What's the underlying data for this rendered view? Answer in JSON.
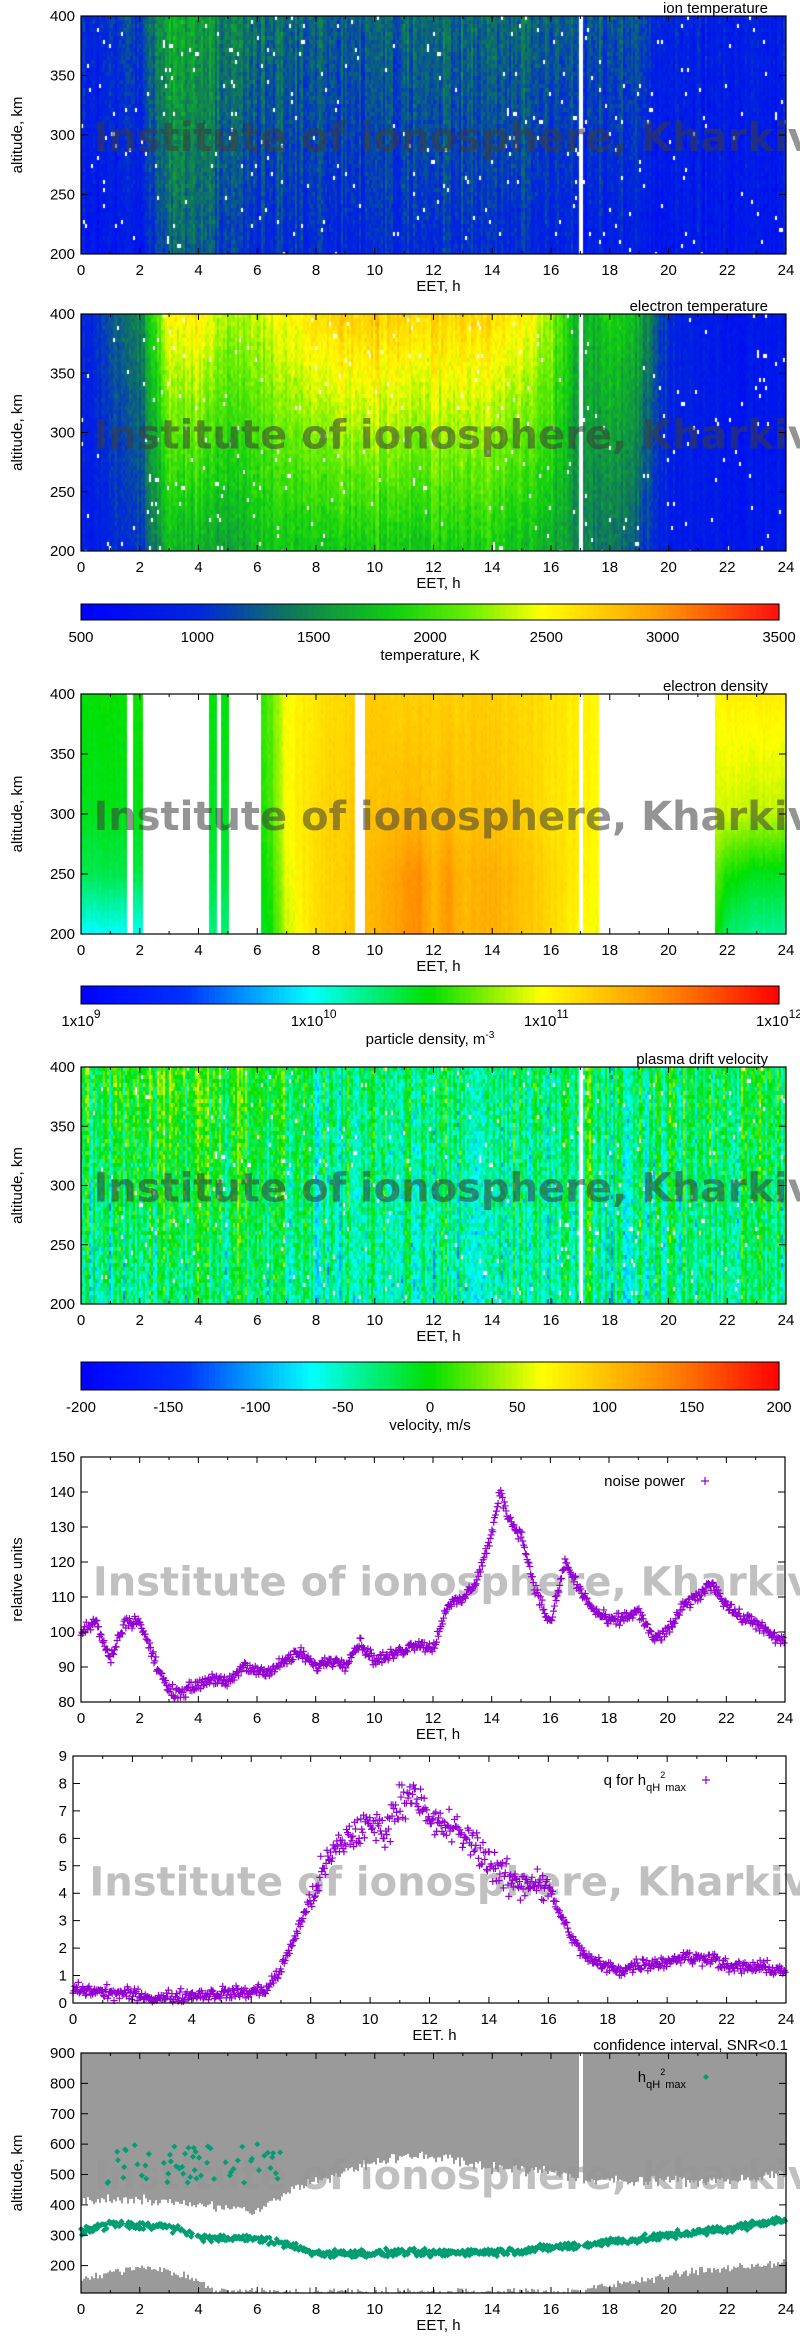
{
  "watermark": "Institute of ionosphere, Kharkiv",
  "colors": {
    "noise_marker": "#9400d3",
    "q_marker": "#9400d3",
    "h_marker": "#009e73",
    "confidence_gray": "#9a9a9a",
    "gap": "#ffffff"
  },
  "chart_data": [
    {
      "id": "ion-temperature",
      "type": "heatmap",
      "title": "ion temperature",
      "xlabel": "EET, h",
      "ylabel": "altitude, km",
      "xlim": [
        0,
        24
      ],
      "ylim": [
        200,
        400
      ],
      "xticks": [
        "0",
        "2",
        "4",
        "6",
        "8",
        "10",
        "12",
        "14",
        "16",
        "18",
        "20",
        "22",
        "24"
      ],
      "yticks": [
        "200",
        "250",
        "300",
        "350",
        "400"
      ],
      "colormap": "temperature",
      "crange": [
        500,
        3500
      ],
      "gaps": [
        [
          16.95,
          17.1
        ]
      ],
      "altitudes": [
        200,
        400
      ],
      "hours": [
        0,
        1,
        2,
        3,
        4,
        5,
        6,
        7,
        8,
        9,
        10,
        11,
        12,
        13,
        14,
        15,
        16,
        17,
        18,
        19,
        20,
        21,
        22,
        23,
        24
      ],
      "values": [
        [
          800,
          1000
        ],
        [
          800,
          1050
        ],
        [
          850,
          1200
        ],
        [
          1300,
          1700
        ],
        [
          1300,
          1650
        ],
        [
          1100,
          1450
        ],
        [
          1000,
          1400
        ],
        [
          1000,
          1300
        ],
        [
          1000,
          1300
        ],
        [
          1000,
          1300
        ],
        [
          1000,
          1300
        ],
        [
          1000,
          1300
        ],
        [
          1000,
          1350
        ],
        [
          1050,
          1350
        ],
        [
          1000,
          1350
        ],
        [
          1000,
          1350
        ],
        [
          950,
          1300
        ],
        [
          900,
          1250
        ],
        [
          900,
          1250
        ],
        [
          850,
          1200
        ],
        [
          800,
          950
        ],
        [
          800,
          900
        ],
        [
          800,
          900
        ],
        [
          800,
          900
        ],
        [
          800,
          900
        ]
      ],
      "colorbar": null
    },
    {
      "id": "electron-temperature",
      "type": "heatmap",
      "title": "electron temperature",
      "xlabel": "EET, h",
      "ylabel": "altitude, km",
      "xlim": [
        0,
        24
      ],
      "ylim": [
        200,
        400
      ],
      "xticks": [
        "0",
        "2",
        "4",
        "6",
        "8",
        "10",
        "12",
        "14",
        "16",
        "18",
        "20",
        "22",
        "24"
      ],
      "yticks": [
        "200",
        "250",
        "300",
        "350",
        "400"
      ],
      "colormap": "temperature",
      "crange": [
        500,
        3500
      ],
      "gaps": [
        [
          16.95,
          17.1
        ]
      ],
      "altitudes": [
        200,
        400
      ],
      "hours": [
        0,
        1,
        2,
        3,
        4,
        5,
        6,
        7,
        8,
        9,
        10,
        11,
        12,
        13,
        14,
        15,
        16,
        17,
        18,
        19,
        20,
        21,
        22,
        23,
        24
      ],
      "values": [
        [
          800,
          900
        ],
        [
          950,
          1200
        ],
        [
          1100,
          1500
        ],
        [
          1700,
          2500
        ],
        [
          1700,
          2600
        ],
        [
          1600,
          2300
        ],
        [
          1700,
          2300
        ],
        [
          1800,
          2500
        ],
        [
          1800,
          2650
        ],
        [
          1800,
          2700
        ],
        [
          1850,
          2750
        ],
        [
          1850,
          2750
        ],
        [
          1850,
          2700
        ],
        [
          1850,
          2700
        ],
        [
          1850,
          2650
        ],
        [
          1800,
          2600
        ],
        [
          1700,
          2300
        ],
        [
          1400,
          1600
        ],
        [
          1400,
          1900
        ],
        [
          1200,
          1700
        ],
        [
          850,
          1000
        ],
        [
          800,
          850
        ],
        [
          800,
          800
        ],
        [
          800,
          800
        ],
        [
          800,
          800
        ]
      ],
      "colorbar": {
        "label": "temperature, K",
        "ticks": [
          "500",
          "1000",
          "1500",
          "2000",
          "2500",
          "3000",
          "3500"
        ]
      }
    },
    {
      "id": "electron-density",
      "type": "heatmap",
      "title": "electron density",
      "xlabel": "EET, h",
      "ylabel": "altitude, km",
      "xlim": [
        0,
        24
      ],
      "ylim": [
        200,
        400
      ],
      "xticks": [
        "0",
        "2",
        "4",
        "6",
        "8",
        "10",
        "12",
        "14",
        "16",
        "18",
        "20",
        "22",
        "24"
      ],
      "yticks": [
        "200",
        "250",
        "300",
        "350",
        "400"
      ],
      "colormap": "rainbow",
      "crange": [
        9,
        12
      ],
      "log_scale": true,
      "gaps": [
        [
          1.6,
          1.8
        ],
        [
          2.1,
          4.35
        ],
        [
          4.6,
          4.8
        ],
        [
          5.05,
          6.1
        ],
        [
          9.35,
          9.65
        ],
        [
          16.95,
          17.1
        ],
        [
          17.6,
          21.6
        ]
      ],
      "altitudes": [
        200,
        250,
        300,
        400
      ],
      "hours": [
        0,
        2,
        4,
        6,
        6.5,
        7,
        8,
        9,
        10,
        11,
        11.5,
        12,
        12.5,
        13,
        14,
        15,
        16,
        17,
        17.5,
        21.6,
        22,
        23,
        24
      ],
      "values": [
        [
          10.0,
          10.35,
          10.45,
          10.5
        ],
        [
          10.0,
          10.35,
          10.45,
          10.5
        ],
        [
          10.2,
          10.35,
          10.4,
          10.45
        ],
        [
          10.35,
          10.45,
          10.5,
          10.55
        ],
        [
          10.55,
          10.6,
          10.65,
          10.7
        ],
        [
          10.9,
          10.95,
          11.0,
          11.0
        ],
        [
          11.15,
          11.15,
          11.15,
          11.1
        ],
        [
          11.2,
          11.2,
          11.2,
          11.15
        ],
        [
          11.3,
          11.3,
          11.25,
          11.2
        ],
        [
          11.45,
          11.45,
          11.3,
          11.2
        ],
        [
          11.5,
          11.5,
          11.3,
          11.2
        ],
        [
          11.3,
          11.3,
          11.25,
          11.2
        ],
        [
          11.45,
          11.45,
          11.3,
          11.2
        ],
        [
          11.3,
          11.3,
          11.25,
          11.2
        ],
        [
          11.35,
          11.35,
          11.25,
          11.2
        ],
        [
          11.25,
          11.25,
          11.2,
          11.15
        ],
        [
          11.15,
          11.15,
          11.1,
          11.1
        ],
        [
          11.0,
          11.05,
          11.05,
          11.05
        ],
        [
          10.95,
          11.0,
          11.0,
          11.0
        ],
        [
          10.55,
          10.7,
          10.9,
          11.0
        ],
        [
          10.3,
          10.55,
          10.9,
          11.05
        ],
        [
          10.2,
          10.45,
          10.85,
          11.05
        ],
        [
          10.2,
          10.45,
          10.85,
          11.05
        ]
      ],
      "colorbar": {
        "label": "particle density, m",
        "label_sup": "-3",
        "ticks": [
          {
            "base": "1x10",
            "exp": "9"
          },
          {
            "base": "1x10",
            "exp": "10"
          },
          {
            "base": "1x10",
            "exp": "11"
          },
          {
            "base": "1x10",
            "exp": "12"
          }
        ]
      }
    },
    {
      "id": "plasma-drift-velocity",
      "type": "heatmap",
      "title": "plasma drift velocity",
      "xlabel": "EET, h",
      "ylabel": "altitude, km",
      "xlim": [
        0,
        24
      ],
      "ylim": [
        200,
        400
      ],
      "xticks": [
        "0",
        "2",
        "4",
        "6",
        "8",
        "10",
        "12",
        "14",
        "16",
        "18",
        "20",
        "22",
        "24"
      ],
      "yticks": [
        "200",
        "250",
        "300",
        "350",
        "400"
      ],
      "colormap": "rainbow",
      "crange": [
        -200,
        200
      ],
      "gaps": [
        [
          16.95,
          17.1
        ]
      ],
      "altitudes": [
        200,
        400
      ],
      "hours": [
        0,
        3,
        6,
        9,
        12,
        15,
        18,
        21,
        24
      ],
      "values": [
        [
          -40,
          0
        ],
        [
          -30,
          20
        ],
        [
          -40,
          -10
        ],
        [
          -50,
          -30
        ],
        [
          -50,
          -30
        ],
        [
          -45,
          -30
        ],
        [
          -40,
          -20
        ],
        [
          -40,
          -20
        ],
        [
          -30,
          -10
        ]
      ],
      "colorbar": {
        "label": "velocity, m/s",
        "ticks": [
          "-200",
          "-150",
          "-100",
          "-50",
          "0",
          "50",
          "100",
          "150",
          "200"
        ]
      }
    },
    {
      "id": "noise-power",
      "type": "scatter",
      "xlabel": "EET, h",
      "ylabel": "relative units",
      "xlim": [
        0,
        24
      ],
      "ylim": [
        80,
        150
      ],
      "xticks": [
        "0",
        "2",
        "4",
        "6",
        "8",
        "10",
        "12",
        "14",
        "16",
        "18",
        "20",
        "22",
        "24"
      ],
      "yticks": [
        "80",
        "90",
        "100",
        "110",
        "120",
        "130",
        "140",
        "150"
      ],
      "legend": {
        "label": "noise power",
        "position": "top-right"
      },
      "marker": "plus",
      "series": [
        {
          "name": "noise power",
          "x": [
            0,
            0.5,
            1,
            1.5,
            2,
            2.5,
            3,
            3.5,
            4,
            4.5,
            5,
            5.5,
            6,
            6.5,
            7,
            7.5,
            8,
            8.5,
            9,
            9.5,
            10,
            10.5,
            11,
            11.5,
            12,
            12.5,
            13,
            13.5,
            14,
            14.3,
            14.6,
            15,
            15.5,
            16,
            16.5,
            17,
            17.5,
            18,
            18.5,
            19,
            19.5,
            20,
            20.5,
            21,
            21.5,
            22,
            22.5,
            23,
            23.5,
            24
          ],
          "y": [
            100,
            103,
            92,
            103,
            103,
            92,
            83,
            83,
            85,
            87,
            85,
            90,
            89,
            89,
            92,
            94,
            90,
            92,
            91,
            97,
            92,
            93,
            95,
            97,
            95,
            108,
            109,
            115,
            128,
            140,
            132,
            128,
            112,
            102,
            120,
            112,
            106,
            103,
            104,
            106,
            98,
            100,
            107,
            110,
            114,
            108,
            104,
            103,
            99,
            97
          ]
        }
      ]
    },
    {
      "id": "q-for-h",
      "type": "scatter",
      "xlabel": "EET. h",
      "ylabel": "",
      "xlim": [
        0,
        24
      ],
      "ylim": [
        0,
        9
      ],
      "xticks": [
        "0",
        "2",
        "4",
        "6",
        "8",
        "10",
        "12",
        "14",
        "16",
        "18",
        "20",
        "22",
        "24"
      ],
      "yticks": [
        "0",
        "1",
        "2",
        "3",
        "4",
        "5",
        "6",
        "7",
        "8",
        "9"
      ],
      "legend": {
        "label": "q for h",
        "sub": "qH",
        "sup": "2",
        "sub2": "max",
        "position": "top-right"
      },
      "marker": "plus",
      "series": [
        {
          "name": "q for hqH2max",
          "x": [
            0,
            1,
            2,
            3,
            4,
            5,
            6,
            6.5,
            7,
            7.5,
            8,
            8.5,
            9,
            9.5,
            10,
            10.5,
            11,
            11.5,
            12,
            12.5,
            13,
            13.5,
            14,
            14.5,
            15,
            15.5,
            16,
            16.5,
            17,
            17.5,
            18,
            18.5,
            19,
            20,
            20.5,
            21,
            21.5,
            22,
            23,
            24
          ],
          "y": [
            0.5,
            0.4,
            0.3,
            0.15,
            0.3,
            0.35,
            0.4,
            0.5,
            1.2,
            2.5,
            3.8,
            5,
            5.8,
            6.2,
            6.5,
            6.3,
            7.3,
            7.8,
            6.5,
            6.5,
            6.2,
            5.8,
            5.2,
            4.6,
            4.3,
            4.5,
            4.2,
            3,
            2,
            1.5,
            1.3,
            1.2,
            1.4,
            1.5,
            1.7,
            1.6,
            1.7,
            1.3,
            1.3,
            1.2
          ]
        }
      ]
    },
    {
      "id": "hmax-confidence",
      "type": "scatter",
      "title": "confidence interval, SNR<0.1",
      "xlabel": "EET, h",
      "ylabel": "altitude, km",
      "xlim": [
        0,
        24
      ],
      "ylim": [
        110,
        900
      ],
      "xticks": [
        "0",
        "2",
        "4",
        "6",
        "8",
        "10",
        "12",
        "14",
        "16",
        "18",
        "20",
        "22",
        "24"
      ],
      "yticks": [
        "200",
        "300",
        "400",
        "500",
        "600",
        "700",
        "800",
        "900"
      ],
      "legend": {
        "label": "h",
        "sub": "qH",
        "sup": "2",
        "sub2": "max",
        "position": "top-right"
      },
      "marker": "diamond",
      "gaps": [
        [
          16.95,
          17.1
        ]
      ],
      "confidence_upper": {
        "x": [
          0,
          2,
          4,
          6,
          7,
          8,
          10,
          11,
          12,
          14,
          16,
          17,
          18,
          20,
          22,
          24
        ],
        "y": [
          410,
          420,
          400,
          380,
          440,
          480,
          540,
          560,
          560,
          520,
          510,
          480,
          480,
          480,
          480,
          500
        ]
      },
      "confidence_lower": {
        "x": [
          0,
          2,
          3,
          4,
          4.5,
          5,
          16,
          17,
          19,
          20,
          22,
          24
        ],
        "y": [
          150,
          200,
          180,
          150,
          120,
          115,
          115,
          120,
          150,
          170,
          190,
          210
        ]
      },
      "series": [
        {
          "name": "hqH2max",
          "x": [
            0,
            1,
            2,
            3,
            4,
            5,
            6,
            7,
            8,
            9,
            10,
            11,
            12,
            13,
            14,
            15,
            16,
            17,
            18,
            19,
            20,
            21,
            22,
            23,
            24
          ],
          "y": [
            310,
            340,
            330,
            330,
            290,
            290,
            290,
            270,
            240,
            240,
            240,
            245,
            240,
            245,
            245,
            250,
            260,
            265,
            280,
            285,
            300,
            310,
            320,
            340,
            350
          ]
        }
      ]
    }
  ]
}
